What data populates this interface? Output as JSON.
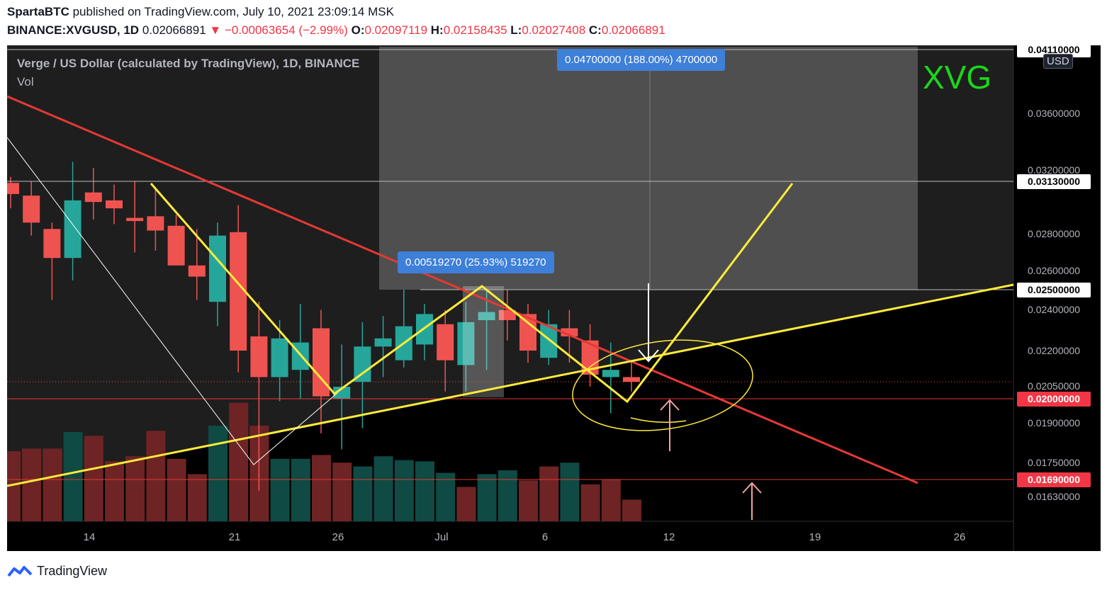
{
  "header": {
    "author": "SpartaBTC",
    "published_text": "published on TradingView.com, July 10, 2021 23:09:14 MSK",
    "symbol": "BINANCE:XVGUSD, 1D",
    "price": "0.02066891",
    "change": "▼ −0.00063654 (−2.99%)",
    "o_label": "O:",
    "o": "0.02097119",
    "h_label": "H:",
    "h": "0.02158435",
    "l_label": "L:",
    "l": "0.02027408",
    "c_label": "C:",
    "c": "0.02066891"
  },
  "chart_title": "Verge / US Dollar (calculated by TradingView), 1D, BINANCE",
  "volume_label": "Vol",
  "ticker_mark": "XVG",
  "currency_button": "USD",
  "measure_large": "0.04700000 (188.00%) 4700000",
  "measure_small": "0.00519270 (25.93%) 519270",
  "footer_brand": "TradingView",
  "colors": {
    "up": "#26a69a",
    "down": "#ef5350",
    "up_vol": "#0f4a44",
    "down_vol": "#6e2424",
    "pattern": "#ffeb3b",
    "trend": "#e53935",
    "measure": "#3d7fd9"
  },
  "chart_data": {
    "type": "candlestick",
    "title": "Verge / US Dollar (calculated by TradingView), 1D, BINANCE",
    "price_axis_labels": [
      "0.04110000",
      "0.03600000",
      "0.03200000",
      "0.03130000",
      "0.02800000",
      "0.02600000",
      "0.02500000",
      "0.02400000",
      "0.02200000",
      "0.02050000",
      "0.02000000",
      "0.01900000",
      "0.01750000",
      "0.01690000",
      "0.01630000"
    ],
    "highlighted_levels": [
      "0.04110000",
      "0.03130000",
      "0.02500000",
      "0.02000000",
      "0.01690000"
    ],
    "time_axis_labels": [
      "14",
      "21",
      "26",
      "Jul",
      "6",
      "12",
      "19",
      "26"
    ],
    "candles": [
      {
        "o": 0.0312,
        "h": 0.0316,
        "l": 0.0296,
        "c": 0.0305
      },
      {
        "o": 0.0304,
        "h": 0.0313,
        "l": 0.0279,
        "c": 0.0287
      },
      {
        "o": 0.0283,
        "h": 0.0287,
        "l": 0.0245,
        "c": 0.0267
      },
      {
        "o": 0.0267,
        "h": 0.0326,
        "l": 0.0255,
        "c": 0.0301
      },
      {
        "o": 0.0306,
        "h": 0.0322,
        "l": 0.0289,
        "c": 0.03
      },
      {
        "o": 0.0301,
        "h": 0.0311,
        "l": 0.0286,
        "c": 0.0296
      },
      {
        "o": 0.029,
        "h": 0.0313,
        "l": 0.027,
        "c": 0.0288
      },
      {
        "o": 0.0291,
        "h": 0.0308,
        "l": 0.0271,
        "c": 0.0282
      },
      {
        "o": 0.0285,
        "h": 0.0292,
        "l": 0.0264,
        "c": 0.0263
      },
      {
        "o": 0.0263,
        "h": 0.0283,
        "l": 0.0245,
        "c": 0.0257
      },
      {
        "o": 0.0244,
        "h": 0.0287,
        "l": 0.0232,
        "c": 0.0279
      },
      {
        "o": 0.0281,
        "h": 0.0298,
        "l": 0.0211,
        "c": 0.022
      },
      {
        "o": 0.0227,
        "h": 0.0244,
        "l": 0.0165,
        "c": 0.0209
      },
      {
        "o": 0.0209,
        "h": 0.0235,
        "l": 0.0199,
        "c": 0.0226
      },
      {
        "o": 0.0212,
        "h": 0.0243,
        "l": 0.02,
        "c": 0.0224
      },
      {
        "o": 0.0231,
        "h": 0.024,
        "l": 0.0186,
        "c": 0.0201
      },
      {
        "o": 0.02,
        "h": 0.0223,
        "l": 0.018,
        "c": 0.0205
      },
      {
        "o": 0.0207,
        "h": 0.0234,
        "l": 0.0188,
        "c": 0.0222
      },
      {
        "o": 0.0222,
        "h": 0.0237,
        "l": 0.0209,
        "c": 0.0226
      },
      {
        "o": 0.0216,
        "h": 0.025,
        "l": 0.0213,
        "c": 0.0232
      },
      {
        "o": 0.0223,
        "h": 0.0243,
        "l": 0.0216,
        "c": 0.0238
      },
      {
        "o": 0.0233,
        "h": 0.024,
        "l": 0.0203,
        "c": 0.0216
      },
      {
        "o": 0.0214,
        "h": 0.0244,
        "l": 0.0203,
        "c": 0.0234
      },
      {
        "o": 0.0235,
        "h": 0.025,
        "l": 0.0212,
        "c": 0.0239
      },
      {
        "o": 0.024,
        "h": 0.025,
        "l": 0.0225,
        "c": 0.0235
      },
      {
        "o": 0.0238,
        "h": 0.0243,
        "l": 0.0215,
        "c": 0.022
      },
      {
        "o": 0.0217,
        "h": 0.024,
        "l": 0.0214,
        "c": 0.0233
      },
      {
        "o": 0.0231,
        "h": 0.024,
        "l": 0.0215,
        "c": 0.0227
      },
      {
        "o": 0.0225,
        "h": 0.0233,
        "l": 0.0205,
        "c": 0.021
      },
      {
        "o": 0.0209,
        "h": 0.0224,
        "l": 0.0194,
        "c": 0.0212
      },
      {
        "o": 0.0209,
        "h": 0.0216,
        "l": 0.0203,
        "c": 0.0207
      }
    ],
    "volume": [
      {
        "v": 0.55,
        "d": "down"
      },
      {
        "v": 0.57,
        "d": "down"
      },
      {
        "v": 0.57,
        "d": "down"
      },
      {
        "v": 0.7,
        "d": "up"
      },
      {
        "v": 0.67,
        "d": "down"
      },
      {
        "v": 0.47,
        "d": "down"
      },
      {
        "v": 0.51,
        "d": "down"
      },
      {
        "v": 0.71,
        "d": "down"
      },
      {
        "v": 0.49,
        "d": "down"
      },
      {
        "v": 0.37,
        "d": "down"
      },
      {
        "v": 0.75,
        "d": "up"
      },
      {
        "v": 0.93,
        "d": "down"
      },
      {
        "v": 0.75,
        "d": "down"
      },
      {
        "v": 0.49,
        "d": "up"
      },
      {
        "v": 0.49,
        "d": "up"
      },
      {
        "v": 0.52,
        "d": "down"
      },
      {
        "v": 0.46,
        "d": "down"
      },
      {
        "v": 0.43,
        "d": "up"
      },
      {
        "v": 0.51,
        "d": "up"
      },
      {
        "v": 0.48,
        "d": "up"
      },
      {
        "v": 0.47,
        "d": "up"
      },
      {
        "v": 0.38,
        "d": "up"
      },
      {
        "v": 0.27,
        "d": "down"
      },
      {
        "v": 0.37,
        "d": "up"
      },
      {
        "v": 0.4,
        "d": "up"
      },
      {
        "v": 0.32,
        "d": "down"
      },
      {
        "v": 0.43,
        "d": "down"
      },
      {
        "v": 0.46,
        "d": "up"
      },
      {
        "v": 0.29,
        "d": "down"
      },
      {
        "v": 0.33,
        "d": "down"
      },
      {
        "v": 0.17,
        "d": "down"
      }
    ]
  }
}
